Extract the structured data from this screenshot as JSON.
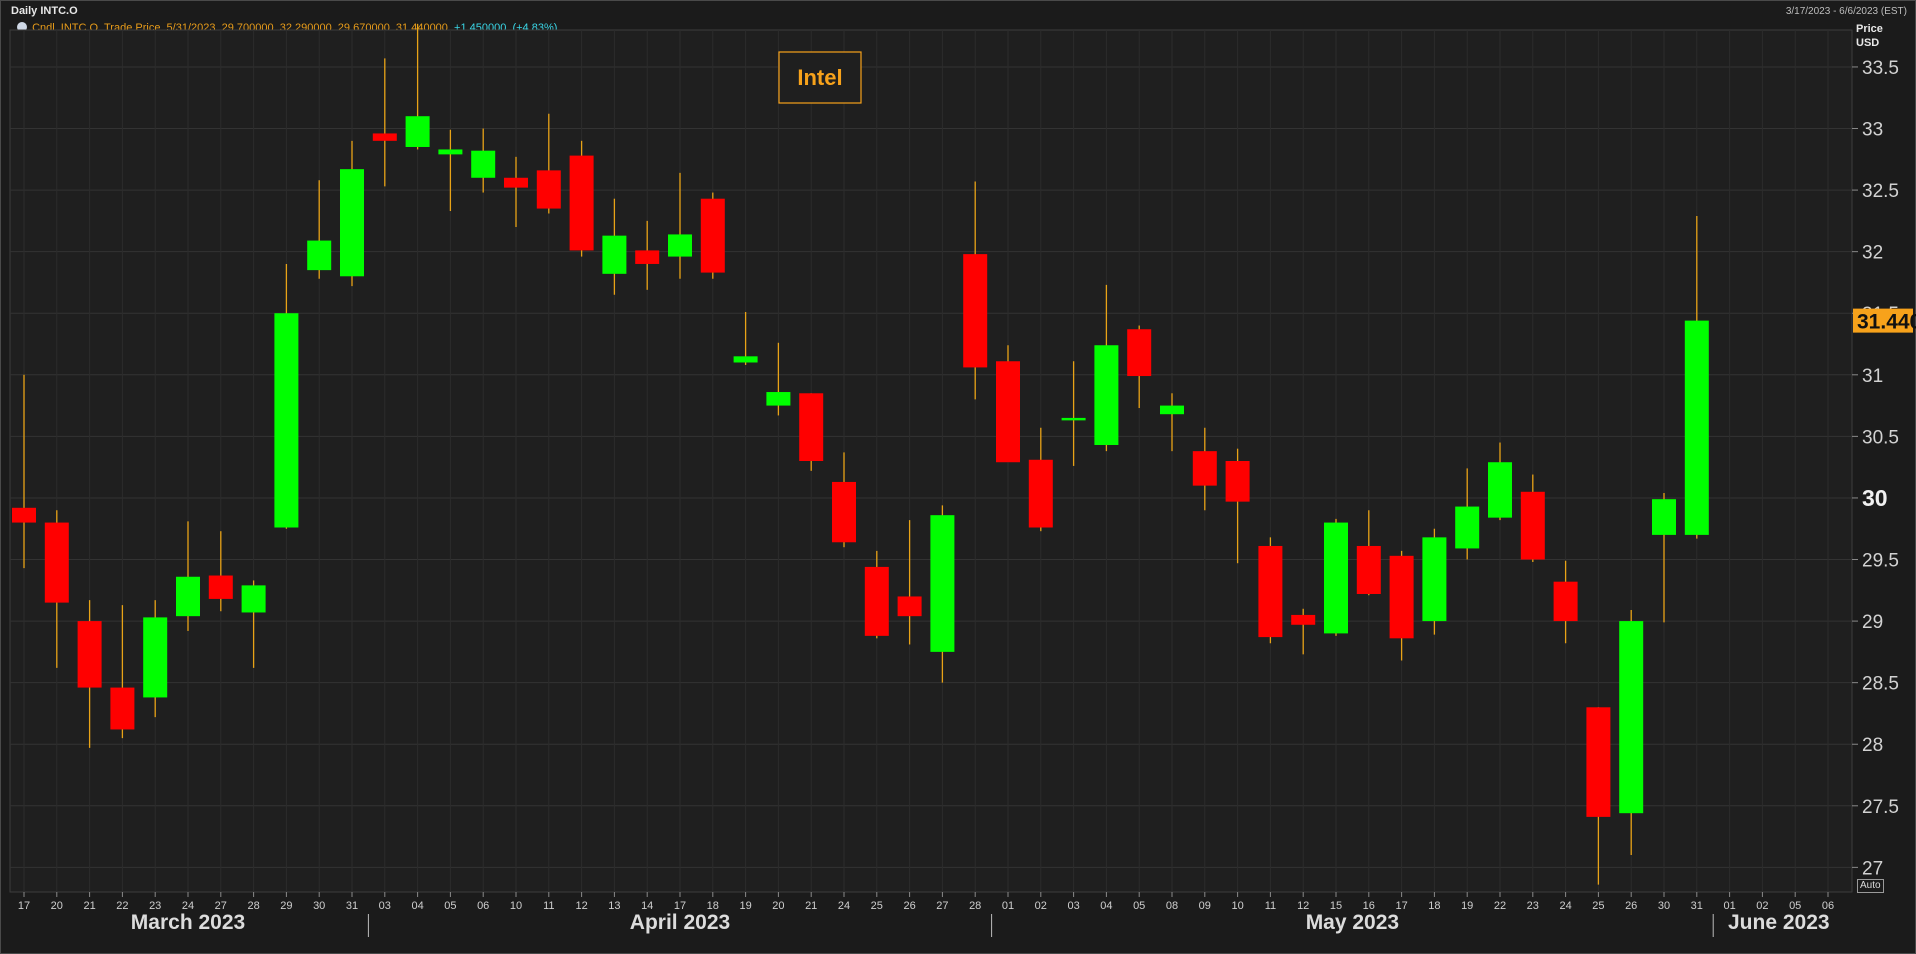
{
  "header": {
    "title": "Daily INTC.O",
    "date_range": "3/17/2023 - 6/6/2023 (EST)",
    "price_label_line1": "Price",
    "price_label_line2": "USD",
    "auto_label": "Auto"
  },
  "legend": {
    "text": "Cndl, INTC.O, Trade Price, 5/31/2023, 29.700000, 32.290000, 29.670000, 31.440000,",
    "change": "+1.450000, (+4.83%)"
  },
  "annotation": {
    "label": "Intel"
  },
  "last_price": {
    "value": 31.44,
    "label": "31.440"
  },
  "colors": {
    "up": "#00ff00",
    "down": "#ff0000",
    "wick": "#e8a317",
    "accent": "#f7a21b",
    "background": "#1b1b1b",
    "grid": "#333333"
  },
  "chart_data": {
    "type": "candlestick",
    "title": "Daily INTC.O",
    "ylabel": "Price USD",
    "ylim": [
      26.8,
      33.8
    ],
    "yticks": [
      27,
      27.5,
      28,
      28.5,
      29,
      29.5,
      30,
      30.5,
      31,
      31.5,
      32,
      32.5,
      33,
      33.5
    ],
    "ytick_labels": [
      "27",
      "27.5",
      "28",
      "28.5",
      "29",
      "29.5",
      "30",
      "30.5",
      "31",
      "31.5",
      "32",
      "32.5",
      "33",
      "33.5"
    ],
    "grid": true,
    "months": [
      {
        "label": "March 2023",
        "start": 0,
        "end": 10
      },
      {
        "label": "April 2023",
        "start": 11,
        "end": 29
      },
      {
        "label": "May 2023",
        "start": 30,
        "end": 51
      },
      {
        "label": "June 2023",
        "start": 52,
        "end": 55
      }
    ],
    "x": [
      "17",
      "20",
      "21",
      "22",
      "23",
      "24",
      "27",
      "28",
      "29",
      "30",
      "31",
      "03",
      "04",
      "05",
      "06",
      "10",
      "11",
      "12",
      "13",
      "14",
      "17",
      "18",
      "19",
      "20",
      "21",
      "24",
      "25",
      "26",
      "27",
      "28",
      "01",
      "02",
      "03",
      "04",
      "05",
      "08",
      "09",
      "10",
      "11",
      "12",
      "15",
      "16",
      "17",
      "18",
      "19",
      "22",
      "23",
      "24",
      "25",
      "26",
      "30",
      "31",
      "01",
      "02",
      "05",
      "06"
    ],
    "candles": [
      {
        "date": "17",
        "open": 29.92,
        "high": 31.0,
        "low": 29.43,
        "close": 29.8
      },
      {
        "date": "20",
        "open": 29.8,
        "high": 29.9,
        "low": 28.62,
        "close": 29.15
      },
      {
        "date": "21",
        "open": 29.0,
        "high": 29.17,
        "low": 27.97,
        "close": 28.46
      },
      {
        "date": "22",
        "open": 28.46,
        "high": 29.13,
        "low": 28.05,
        "close": 28.12
      },
      {
        "date": "23",
        "open": 28.38,
        "high": 29.17,
        "low": 28.22,
        "close": 29.03
      },
      {
        "date": "24",
        "open": 29.04,
        "high": 29.81,
        "low": 28.92,
        "close": 29.36
      },
      {
        "date": "27",
        "open": 29.37,
        "high": 29.73,
        "low": 29.08,
        "close": 29.18
      },
      {
        "date": "28",
        "open": 29.07,
        "high": 29.33,
        "low": 28.62,
        "close": 29.29
      },
      {
        "date": "29",
        "open": 29.76,
        "high": 31.9,
        "low": 29.75,
        "close": 31.5
      },
      {
        "date": "30",
        "open": 31.85,
        "high": 32.58,
        "low": 31.78,
        "close": 32.09
      },
      {
        "date": "31",
        "open": 31.8,
        "high": 32.9,
        "low": 31.72,
        "close": 32.67
      },
      {
        "date": "03",
        "open": 32.96,
        "high": 33.57,
        "low": 32.53,
        "close": 32.9
      },
      {
        "date": "04",
        "open": 32.85,
        "high": 33.85,
        "low": 32.83,
        "close": 33.1
      },
      {
        "date": "05",
        "open": 32.79,
        "high": 32.99,
        "low": 32.33,
        "close": 32.83
      },
      {
        "date": "06",
        "open": 32.6,
        "high": 33.0,
        "low": 32.48,
        "close": 32.82
      },
      {
        "date": "10",
        "open": 32.6,
        "high": 32.77,
        "low": 32.2,
        "close": 32.52
      },
      {
        "date": "11",
        "open": 32.66,
        "high": 33.12,
        "low": 32.31,
        "close": 32.35
      },
      {
        "date": "12",
        "open": 32.78,
        "high": 32.9,
        "low": 31.96,
        "close": 32.01
      },
      {
        "date": "13",
        "open": 31.82,
        "high": 32.43,
        "low": 31.65,
        "close": 32.13
      },
      {
        "date": "14",
        "open": 32.01,
        "high": 32.25,
        "low": 31.69,
        "close": 31.9
      },
      {
        "date": "17",
        "open": 31.96,
        "high": 32.64,
        "low": 31.78,
        "close": 32.14
      },
      {
        "date": "18",
        "open": 32.43,
        "high": 32.48,
        "low": 31.78,
        "close": 31.83
      },
      {
        "date": "19",
        "open": 31.1,
        "high": 31.51,
        "low": 31.08,
        "close": 31.15
      },
      {
        "date": "20",
        "open": 30.75,
        "high": 31.26,
        "low": 30.67,
        "close": 30.86
      },
      {
        "date": "21",
        "open": 30.85,
        "high": 30.85,
        "low": 30.22,
        "close": 30.3
      },
      {
        "date": "24",
        "open": 30.13,
        "high": 30.37,
        "low": 29.6,
        "close": 29.64
      },
      {
        "date": "25",
        "open": 29.44,
        "high": 29.57,
        "low": 28.86,
        "close": 28.88
      },
      {
        "date": "26",
        "open": 29.2,
        "high": 29.82,
        "low": 28.81,
        "close": 29.04
      },
      {
        "date": "27",
        "open": 28.75,
        "high": 29.94,
        "low": 28.5,
        "close": 29.86
      },
      {
        "date": "28",
        "open": 31.98,
        "high": 32.57,
        "low": 30.8,
        "close": 31.06
      },
      {
        "date": "01",
        "open": 31.11,
        "high": 31.24,
        "low": 30.32,
        "close": 30.29
      },
      {
        "date": "02",
        "open": 30.31,
        "high": 30.57,
        "low": 29.73,
        "close": 29.76
      },
      {
        "date": "03",
        "open": 30.63,
        "high": 31.11,
        "low": 30.26,
        "close": 30.65
      },
      {
        "date": "04",
        "open": 30.43,
        "high": 31.73,
        "low": 30.38,
        "close": 31.24
      },
      {
        "date": "05",
        "open": 31.37,
        "high": 31.4,
        "low": 30.73,
        "close": 30.99
      },
      {
        "date": "08",
        "open": 30.68,
        "high": 30.85,
        "low": 30.38,
        "close": 30.75
      },
      {
        "date": "09",
        "open": 30.38,
        "high": 30.57,
        "low": 29.9,
        "close": 30.1
      },
      {
        "date": "10",
        "open": 30.3,
        "high": 30.4,
        "low": 29.47,
        "close": 29.97
      },
      {
        "date": "11",
        "open": 29.61,
        "high": 29.68,
        "low": 28.82,
        "close": 28.87
      },
      {
        "date": "12",
        "open": 29.05,
        "high": 29.1,
        "low": 28.73,
        "close": 28.97
      },
      {
        "date": "15",
        "open": 28.9,
        "high": 29.83,
        "low": 28.88,
        "close": 29.8
      },
      {
        "date": "16",
        "open": 29.61,
        "high": 29.9,
        "low": 29.21,
        "close": 29.22
      },
      {
        "date": "17",
        "open": 29.53,
        "high": 29.57,
        "low": 28.68,
        "close": 28.86
      },
      {
        "date": "18",
        "open": 29.0,
        "high": 29.75,
        "low": 28.89,
        "close": 29.68
      },
      {
        "date": "19",
        "open": 29.59,
        "high": 30.24,
        "low": 29.5,
        "close": 29.93
      },
      {
        "date": "22",
        "open": 29.84,
        "high": 30.45,
        "low": 29.82,
        "close": 30.29
      },
      {
        "date": "23",
        "open": 30.05,
        "high": 30.19,
        "low": 29.48,
        "close": 29.5
      },
      {
        "date": "24",
        "open": 29.32,
        "high": 29.49,
        "low": 28.82,
        "close": 29.0
      },
      {
        "date": "25",
        "open": 28.3,
        "high": 28.3,
        "low": 26.86,
        "close": 27.41
      },
      {
        "date": "26",
        "open": 27.44,
        "high": 29.09,
        "low": 27.1,
        "close": 29.0
      },
      {
        "date": "30",
        "open": 29.7,
        "high": 30.04,
        "low": 28.99,
        "close": 29.99
      },
      {
        "date": "31",
        "open": 29.7,
        "high": 32.29,
        "low": 29.67,
        "close": 31.44
      }
    ]
  }
}
